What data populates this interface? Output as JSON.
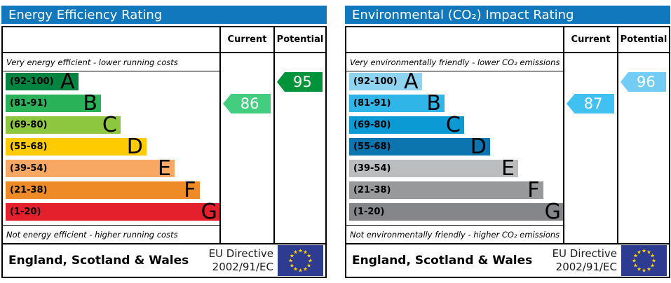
{
  "colors": {
    "header_bg": "#1278be",
    "header_text": "#ffffff",
    "border": "#000000",
    "flag_bg": "#2d3c90",
    "flag_star": "#ffcc00"
  },
  "band_width_pct": [
    33.5,
    44,
    53,
    65,
    78,
    89.5,
    99.3
  ],
  "panels": [
    {
      "title": "Energy Efficiency Rating",
      "columns": {
        "current": "Current",
        "potential": "Potential"
      },
      "top_note": "Very energy efficient - lower running costs",
      "bottom_note": "Not energy efficient - higher running costs",
      "bands": [
        {
          "range": "(92-100)",
          "letter": "A",
          "color": "#038541"
        },
        {
          "range": "(81-91)",
          "letter": "B",
          "color": "#2ab259"
        },
        {
          "range": "(69-80)",
          "letter": "C",
          "color": "#8dc63f"
        },
        {
          "range": "(55-68)",
          "letter": "D",
          "color": "#fecb00"
        },
        {
          "range": "(39-54)",
          "letter": "E",
          "color": "#f9a863"
        },
        {
          "range": "(21-38)",
          "letter": "F",
          "color": "#ee8b27"
        },
        {
          "range": "(1-20)",
          "letter": "G",
          "color": "#e4202c"
        }
      ],
      "current": {
        "label": "86",
        "band_index": 1,
        "color": "#42cd7f"
      },
      "potential": {
        "label": "95",
        "band_index": 0,
        "color": "#009339"
      },
      "footer": {
        "region": "England, Scotland & Wales",
        "directive_line1": "EU Directive",
        "directive_line2": "2002/91/EC"
      }
    },
    {
      "title": "Environmental (CO₂) Impact Rating",
      "columns": {
        "current": "Current",
        "potential": "Potential"
      },
      "top_note": "Very environmentally friendly - lower CO₂ emissions",
      "bottom_note": "Not environmentally friendly - higher CO₂ emissions",
      "bands": [
        {
          "range": "(92-100)",
          "letter": "A",
          "color": "#8ed4f0"
        },
        {
          "range": "(81-91)",
          "letter": "B",
          "color": "#2fb5e8"
        },
        {
          "range": "(69-80)",
          "letter": "C",
          "color": "#0c9ad5"
        },
        {
          "range": "(55-68)",
          "letter": "D",
          "color": "#0c75b0"
        },
        {
          "range": "(39-54)",
          "letter": "E",
          "color": "#bcbdbf"
        },
        {
          "range": "(21-38)",
          "letter": "F",
          "color": "#98999b"
        },
        {
          "range": "(1-20)",
          "letter": "G",
          "color": "#84868a"
        }
      ],
      "current": {
        "label": "87",
        "band_index": 1,
        "color": "#40c1f2"
      },
      "potential": {
        "label": "96",
        "band_index": 0,
        "color": "#73ccf4"
      },
      "footer": {
        "region": "England, Scotland & Wales",
        "directive_line1": "EU Directive",
        "directive_line2": "2002/91/EC"
      }
    }
  ],
  "chart_data": [
    {
      "type": "bar",
      "title": "Energy Efficiency Rating",
      "categories": [
        "A",
        "B",
        "C",
        "D",
        "E",
        "F",
        "G"
      ],
      "band_ranges": [
        "92-100",
        "81-91",
        "69-80",
        "55-68",
        "39-54",
        "21-38",
        "1-20"
      ],
      "values": [
        33.5,
        44,
        53,
        65,
        78,
        89.5,
        99.3
      ],
      "annotations": {
        "current": 86,
        "current_band": "B",
        "potential": 95,
        "potential_band": "A"
      },
      "xlabel": "",
      "ylabel": "",
      "legend": [
        "Current",
        "Potential"
      ]
    },
    {
      "type": "bar",
      "title": "Environmental (CO₂) Impact Rating",
      "categories": [
        "A",
        "B",
        "C",
        "D",
        "E",
        "F",
        "G"
      ],
      "band_ranges": [
        "92-100",
        "81-91",
        "69-80",
        "55-68",
        "39-54",
        "21-38",
        "1-20"
      ],
      "values": [
        33.5,
        44,
        53,
        65,
        78,
        89.5,
        99.3
      ],
      "annotations": {
        "current": 87,
        "current_band": "B",
        "potential": 96,
        "potential_band": "A"
      },
      "xlabel": "",
      "ylabel": "",
      "legend": [
        "Current",
        "Potential"
      ]
    }
  ]
}
